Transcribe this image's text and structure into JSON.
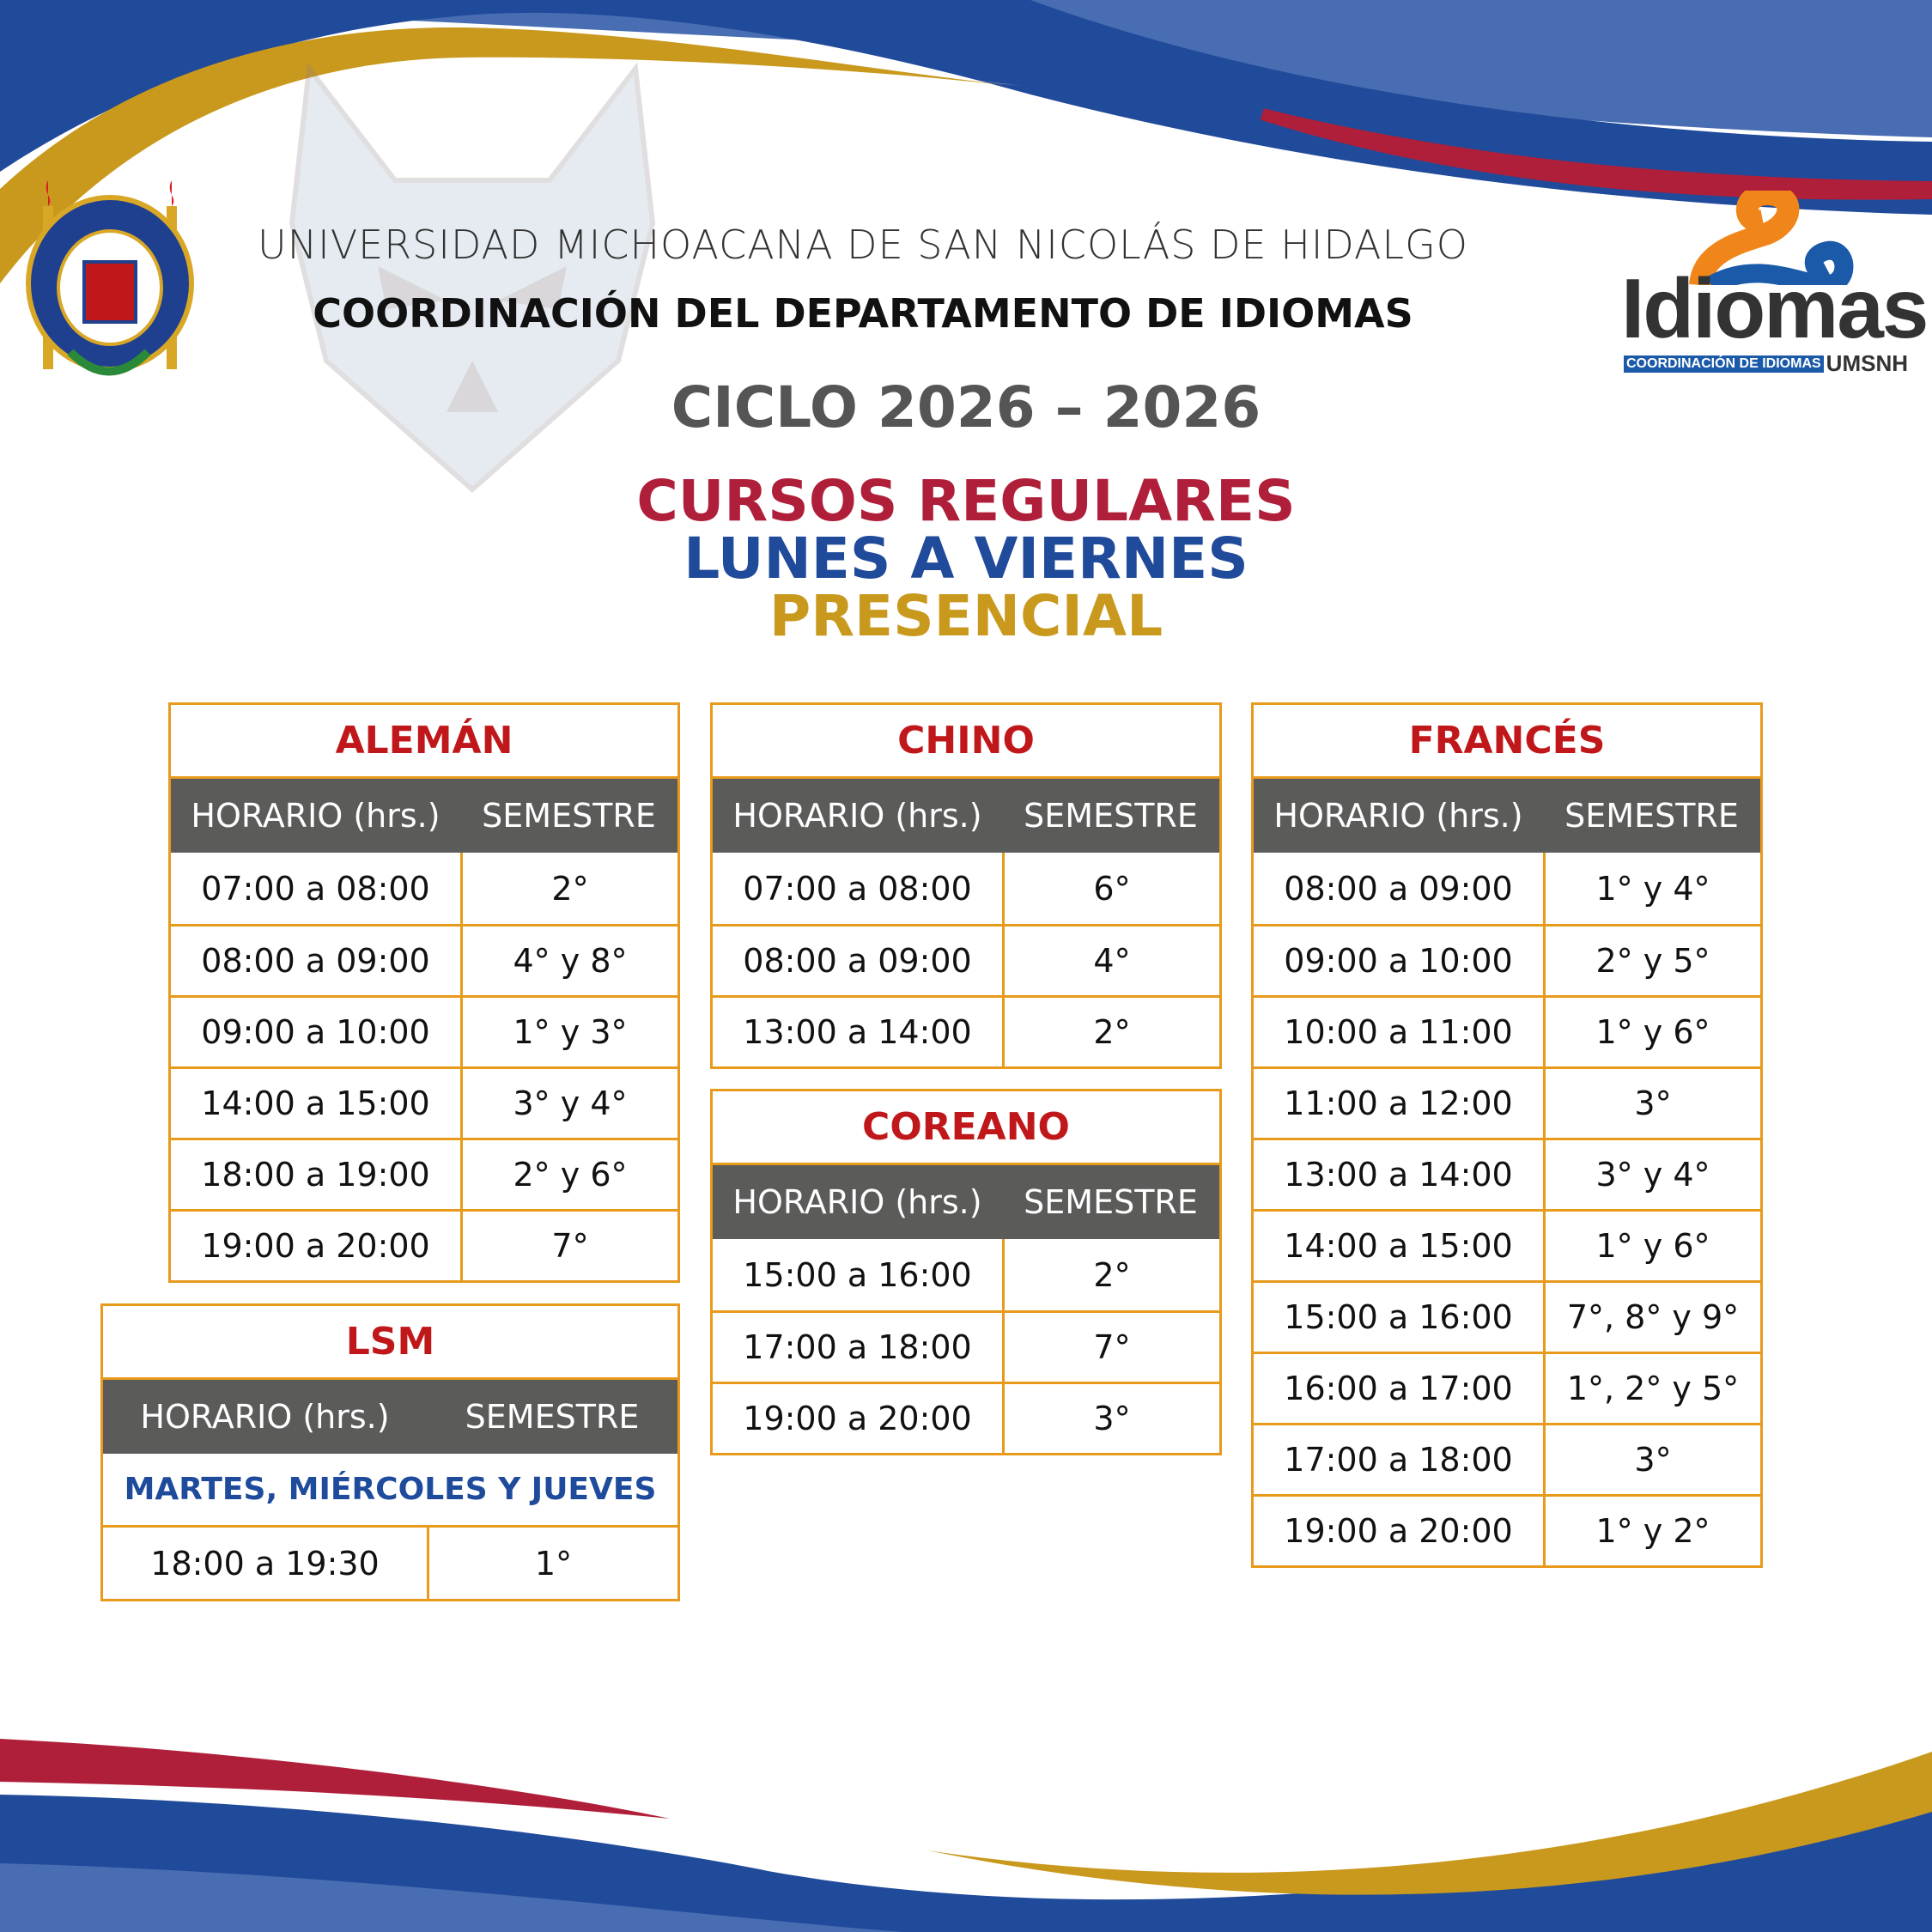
{
  "colors": {
    "blue": "#204a9a",
    "light_blue": "#486db3",
    "gold": "#c9991e",
    "red": "#b01f3a",
    "table_border": "#e89a1c",
    "header_gray": "#5b5b5a",
    "title_red": "#c0181a"
  },
  "header": {
    "university": "UNIVERSIDAD MICHOACANA DE SAN NICOLÁS DE HIDALGO",
    "department": "COORDINACIÓN DEL DEPARTAMENTO DE IDIOMAS",
    "cycle": "CICLO 2026 – 2026",
    "line1": "CURSOS REGULARES",
    "line2": "LUNES A VIERNES",
    "line3": "PRESENCIAL"
  },
  "logo": {
    "word": "Idiomas",
    "band": "COORDINACIÓN DE IDIOMAS",
    "suffix": "UMSNH",
    "seal_text": "UNIVERSIDAD MICHOACANA DE SAN NICOLÁS DE HIDALGO"
  },
  "col_headers": {
    "time": "HORARIO (hrs.)",
    "semester": "SEMESTRE"
  },
  "tables": {
    "aleman": {
      "title": "ALEMÁN",
      "rows": [
        [
          "07:00 a 08:00",
          "2°"
        ],
        [
          "08:00 a 09:00",
          "4° y 8°"
        ],
        [
          "09:00 a 10:00",
          "1° y 3°"
        ],
        [
          "14:00 a 15:00",
          "3° y 4°"
        ],
        [
          "18:00 a 19:00",
          "2° y 6°"
        ],
        [
          "19:00 a 20:00",
          "7°"
        ]
      ]
    },
    "chino": {
      "title": "CHINO",
      "rows": [
        [
          "07:00 a 08:00",
          "6°"
        ],
        [
          "08:00 a 09:00",
          "4°"
        ],
        [
          "13:00 a 14:00",
          "2°"
        ]
      ]
    },
    "coreano": {
      "title": "COREANO",
      "rows": [
        [
          "15:00 a 16:00",
          "2°"
        ],
        [
          "17:00 a 18:00",
          "7°"
        ],
        [
          "19:00 a 20:00",
          "3°"
        ]
      ]
    },
    "frances": {
      "title": "FRANCÉS",
      "rows": [
        [
          "08:00 a 09:00",
          "1° y 4°"
        ],
        [
          "09:00 a 10:00",
          "2° y 5°"
        ],
        [
          "10:00 a 11:00",
          "1° y 6°"
        ],
        [
          "11:00 a 12:00",
          "3°"
        ],
        [
          "13:00 a 14:00",
          "3° y 4°"
        ],
        [
          "14:00 a 15:00",
          "1° y 6°"
        ],
        [
          "15:00 a 16:00",
          "7°, 8° y 9°"
        ],
        [
          "16:00 a 17:00",
          "1°, 2° y 5°"
        ],
        [
          "17:00 a 18:00",
          "3°"
        ],
        [
          "19:00 a 20:00",
          "1° y 2°"
        ]
      ]
    },
    "lsm": {
      "title": "LSM",
      "days": "MARTES, MIÉRCOLES Y JUEVES",
      "rows": [
        [
          "18:00 a 19:30",
          "1°"
        ]
      ]
    }
  }
}
